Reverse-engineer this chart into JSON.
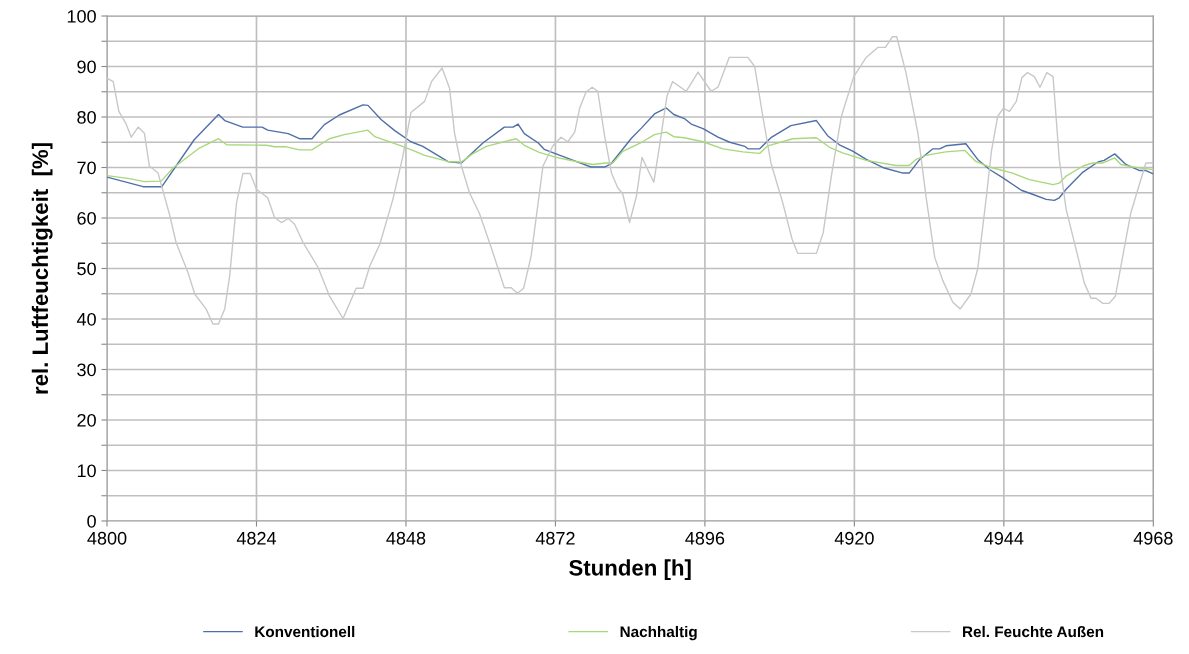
{
  "chart_data": {
    "type": "line",
    "xlabel": "Stunden [h]",
    "ylabel": "rel. Luftfeuchtigkeit  [%]",
    "xlim": [
      4800,
      4968
    ],
    "xticks": [
      4800,
      4824,
      4848,
      4872,
      4896,
      4920,
      4944,
      4968
    ],
    "ylim": [
      0,
      100
    ],
    "yticks": [
      0,
      {
        "value": 5,
        "label": null
      },
      10,
      {
        "value": 15,
        "label": null
      },
      20,
      {
        "value": 25,
        "label": null
      },
      30,
      {
        "value": 35,
        "label": null
      },
      40,
      {
        "value": 45,
        "label": null
      },
      50,
      {
        "value": 55,
        "label": null
      },
      60,
      {
        "value": 65,
        "label": null
      },
      70,
      {
        "value": 75,
        "label": null
      },
      80,
      {
        "value": 85,
        "label": null
      },
      90,
      {
        "value": 95,
        "label": null
      },
      100
    ],
    "grid": true,
    "legend": "bottom",
    "marker": "none",
    "line_style": "solid",
    "series": [
      {
        "name": "Konventionell",
        "color": "#4f6fa8",
        "x": [
          4800,
          4805.8,
          4808.8,
          4814.0,
          4817.9,
          4818.9,
          4821.8,
          4824.9,
          4825.8,
          4829.1,
          4830.9,
          4832.9,
          4834.9,
          4837.3,
          4841.1,
          4841.9,
          4844.0,
          4846.2,
          4848.8,
          4850.7,
          4852.3,
          4854.7,
          4856.9,
          4860.4,
          4863.8,
          4865.2,
          4866.0,
          4867.0,
          4869.2,
          4870.2,
          4872.1,
          4875.3,
          4877.7,
          4879.9,
          4880.9,
          4884.2,
          4885.8,
          4887.9,
          4889.8,
          4891.0,
          4892.7,
          4893.8,
          4895.7,
          4898.1,
          4900.0,
          4902.4,
          4902.9,
          4904.8,
          4906.6,
          4909.8,
          4913.9,
          4915.7,
          4917.6,
          4919.8,
          4921.9,
          4924.8,
          4927.8,
          4928.8,
          4930.5,
          4932.6,
          4933.7,
          4934.7,
          4936.3,
          4937.9,
          4939.8,
          4941.7,
          4943.8,
          4946.8,
          4948.6,
          4950.8,
          4952.1,
          4952.9,
          4954.0,
          4956.7,
          4959.1,
          4960.1,
          4961.8,
          4963.6,
          4965.8,
          4966.8,
          4967.9
        ],
        "values": [
          68.1,
          66.2,
          66.2,
          75.5,
          80.5,
          79.3,
          78.0,
          78.0,
          77.4,
          76.7,
          75.7,
          75.7,
          78.5,
          80.4,
          82.4,
          82.3,
          79.5,
          77.3,
          75.1,
          74.2,
          73.0,
          71.2,
          70.9,
          74.9,
          78.0,
          78.0,
          78.6,
          76.7,
          74.9,
          73.6,
          72.7,
          71.2,
          70.1,
          70.1,
          70.7,
          75.8,
          77.8,
          80.6,
          81.8,
          80.5,
          79.7,
          78.6,
          77.7,
          76.0,
          75.0,
          74.2,
          73.7,
          73.7,
          75.9,
          78.3,
          79.3,
          76.3,
          74.5,
          73.2,
          71.6,
          69.9,
          68.9,
          68.9,
          71.6,
          73.7,
          73.7,
          74.3,
          74.5,
          74.7,
          71.6,
          69.6,
          68.0,
          65.5,
          64.7,
          63.7,
          63.5,
          64.0,
          65.7,
          69.1,
          71.1,
          71.4,
          72.7,
          70.6,
          69.4,
          69.4,
          68.8
        ]
      },
      {
        "name": "Nachhaltig",
        "color": "#a8d87a",
        "x": [
          4800,
          4803.6,
          4806.0,
          4808.7,
          4810.6,
          4814.9,
          4817.9,
          4819.2,
          4825.6,
          4826.9,
          4828.8,
          4830.9,
          4832.9,
          4835.7,
          4838.1,
          4841.9,
          4843.0,
          4847.0,
          4849.1,
          4851.0,
          4854.7,
          4856.9,
          4858.7,
          4860.9,
          4865.7,
          4867.0,
          4869.4,
          4872.1,
          4875.3,
          4878.0,
          4880.1,
          4881.2,
          4882.8,
          4886.0,
          4887.9,
          4889.8,
          4891.0,
          4892.7,
          4895.7,
          4898.9,
          4902.1,
          4904.8,
          4906.1,
          4910.1,
          4913.9,
          4916.0,
          4918.1,
          4921.9,
          4926.7,
          4928.8,
          4929.9,
          4931.5,
          4933.7,
          4934.7,
          4937.7,
          4939.5,
          4941.7,
          4945.4,
          4948.1,
          4951.9,
          4952.9,
          4954.0,
          4956.7,
          4958.3,
          4959.9,
          4961.8,
          4962.8,
          4964.7,
          4967.9
        ],
        "values": [
          68.4,
          67.8,
          67.2,
          67.3,
          69.9,
          73.9,
          75.7,
          74.5,
          74.4,
          74.1,
          74.1,
          73.5,
          73.5,
          75.7,
          76.5,
          77.4,
          76.1,
          74.4,
          73.4,
          72.4,
          71.2,
          71.1,
          72.7,
          74.2,
          75.7,
          74.4,
          73.0,
          72.0,
          71.2,
          70.6,
          70.9,
          70.9,
          73.2,
          75.1,
          76.5,
          77.0,
          76.1,
          75.9,
          75.1,
          73.7,
          73.1,
          72.8,
          74.3,
          75.7,
          75.9,
          74.0,
          72.9,
          71.4,
          70.4,
          70.4,
          71.6,
          72.4,
          72.9,
          73.1,
          73.4,
          71.2,
          70.1,
          68.9,
          67.6,
          66.6,
          66.9,
          68.3,
          70.3,
          70.9,
          70.9,
          71.9,
          70.6,
          70.1,
          69.6
        ]
      },
      {
        "name": "Rel. Feuchte Außen",
        "color": "#c8c8c8",
        "x": [
          4800,
          4801,
          4801.9,
          4803.0,
          4803.9,
          4805.0,
          4806.0,
          4806.8,
          4808.2,
          4810.1,
          4811.1,
          4813.0,
          4814.1,
          4815.9,
          4817.0,
          4817.9,
          4818.9,
          4819.7,
          4820.8,
          4821.8,
          4823.0,
          4824.0,
          4825.8,
          4826.9,
          4828.0,
          4829.1,
          4830.1,
          4831.5,
          4833.9,
          4835.7,
          4837.9,
          4840.0,
          4841.1,
          4842.2,
          4843.8,
          4845.9,
          4847.5,
          4848.8,
          4851.0,
          4852.1,
          4853.8,
          4855.0,
          4855.8,
          4856.9,
          4858.2,
          4859.8,
          4861.7,
          4863.8,
          4864.9,
          4865.9,
          4866.9,
          4868.1,
          4870.0,
          4871.6,
          4872.9,
          4874.0,
          4875.1,
          4875.9,
          4876.9,
          4877.9,
          4878.8,
          4879.9,
          4881.0,
          4882.0,
          4882.8,
          4883.9,
          4885.0,
          4885.9,
          4887.0,
          4887.8,
          4888.7,
          4889.9,
          4890.8,
          4893.0,
          4894.9,
          4897.0,
          4898.1,
          4899.9,
          4902.9,
          4904.0,
          4905.3,
          4906.6,
          4908.5,
          4910.0,
          4910.9,
          4913.9,
          4915.0,
          4916.3,
          4917.9,
          4919.9,
          4921.9,
          4923.8,
          4925.0,
          4926.1,
          4926.8,
          4928.3,
          4930.2,
          4931.5,
          4932.9,
          4934.2,
          4935.8,
          4937.0,
          4938.7,
          4939.8,
          4941.2,
          4942.0,
          4943.0,
          4943.9,
          4944.9,
          4946.0,
          4946.9,
          4947.8,
          4948.9,
          4949.8,
          4950.9,
          4951.9,
          4952.9,
          4954.0,
          4955.6,
          4956.9,
          4958.0,
          4958.8,
          4959.9,
          4960.9,
          4961.9,
          4963.1,
          4964.4,
          4966.8,
          4967.9
        ],
        "values": [
          87.7,
          87.0,
          81.1,
          78.8,
          76.0,
          78.0,
          76.8,
          70.3,
          68.9,
          60.4,
          55.1,
          49.2,
          44.9,
          42.0,
          39.0,
          39.0,
          42.0,
          48.6,
          63.0,
          68.8,
          68.8,
          65.7,
          64.0,
          60.1,
          59.1,
          59.9,
          58.8,
          55.1,
          50.2,
          44.6,
          40.1,
          46.1,
          46.1,
          50.5,
          54.8,
          63.7,
          72.2,
          80.9,
          83.1,
          87.0,
          89.7,
          85.7,
          76.8,
          70.3,
          65.0,
          60.9,
          54.1,
          46.2,
          46.2,
          45.1,
          46.1,
          52.5,
          70.3,
          74.3,
          76.0,
          75.1,
          77.0,
          81.8,
          84.9,
          85.9,
          85.1,
          76.2,
          68.9,
          66.0,
          64.8,
          59.1,
          64.3,
          72.0,
          69.1,
          67.1,
          74.2,
          84.1,
          87.0,
          85.1,
          88.9,
          85.1,
          85.9,
          91.8,
          91.8,
          90.0,
          80.1,
          70.9,
          63.0,
          55.8,
          53.0,
          53.0,
          57.1,
          68.3,
          80.1,
          88.0,
          91.8,
          93.8,
          93.8,
          95.9,
          95.9,
          88.7,
          76.8,
          64.3,
          52.2,
          47.6,
          43.3,
          42.0,
          44.9,
          49.9,
          64.3,
          73.2,
          80.1,
          81.7,
          81.1,
          83.1,
          87.8,
          88.8,
          88.0,
          85.9,
          88.8,
          88.0,
          71.6,
          61.7,
          53.8,
          47.2,
          44.1,
          44.1,
          43.1,
          43.1,
          44.5,
          52.5,
          61.1,
          70.9,
          70.9
        ]
      }
    ]
  }
}
